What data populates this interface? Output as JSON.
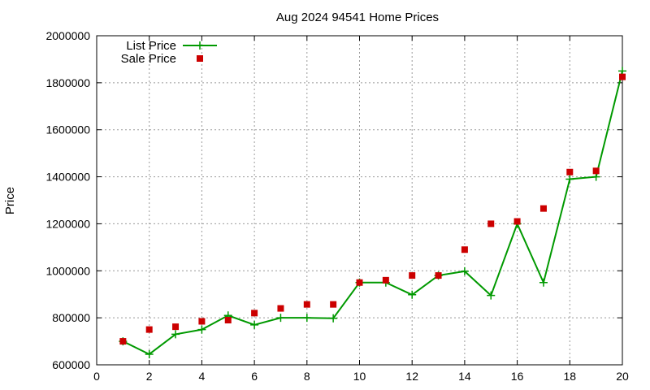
{
  "chart_data": {
    "type": "line",
    "title": "Aug 2024 94541 Home Prices",
    "xlabel": "",
    "ylabel": "Price",
    "xlim": [
      0,
      20
    ],
    "ylim": [
      600000,
      2000000
    ],
    "xticks": [
      "0",
      "2",
      "4",
      "6",
      "8",
      "10",
      "12",
      "14",
      "16",
      "18",
      "20"
    ],
    "yticks": [
      "600000",
      "800000",
      "1000000",
      "1200000",
      "1400000",
      "1600000",
      "1800000",
      "2000000"
    ],
    "grid": true,
    "legend_position": "top-left",
    "series": [
      {
        "name": "List Price",
        "style": "line-with-plus-markers",
        "color": "#009900",
        "x": [
          1,
          2,
          3,
          4,
          5,
          6,
          7,
          8,
          9,
          10,
          11,
          12,
          13,
          14,
          15,
          16,
          17,
          18,
          19,
          20
        ],
        "y": [
          700000,
          645000,
          730000,
          750000,
          810000,
          770000,
          800000,
          800000,
          798000,
          950000,
          950000,
          898000,
          980000,
          998000,
          895000,
          1200000,
          950000,
          1390000,
          1400000,
          1850000
        ]
      },
      {
        "name": "Sale Price",
        "style": "square-markers",
        "color": "#cc0000",
        "x": [
          1,
          2,
          3,
          4,
          5,
          6,
          7,
          8,
          9,
          10,
          11,
          12,
          13,
          14,
          15,
          16,
          17,
          18,
          19,
          20
        ],
        "y": [
          700000,
          750000,
          762000,
          785000,
          790000,
          820000,
          840000,
          857000,
          857000,
          950000,
          960000,
          980000,
          980000,
          1090000,
          1200000,
          1210000,
          1265000,
          1420000,
          1425000,
          1825000
        ]
      }
    ]
  }
}
